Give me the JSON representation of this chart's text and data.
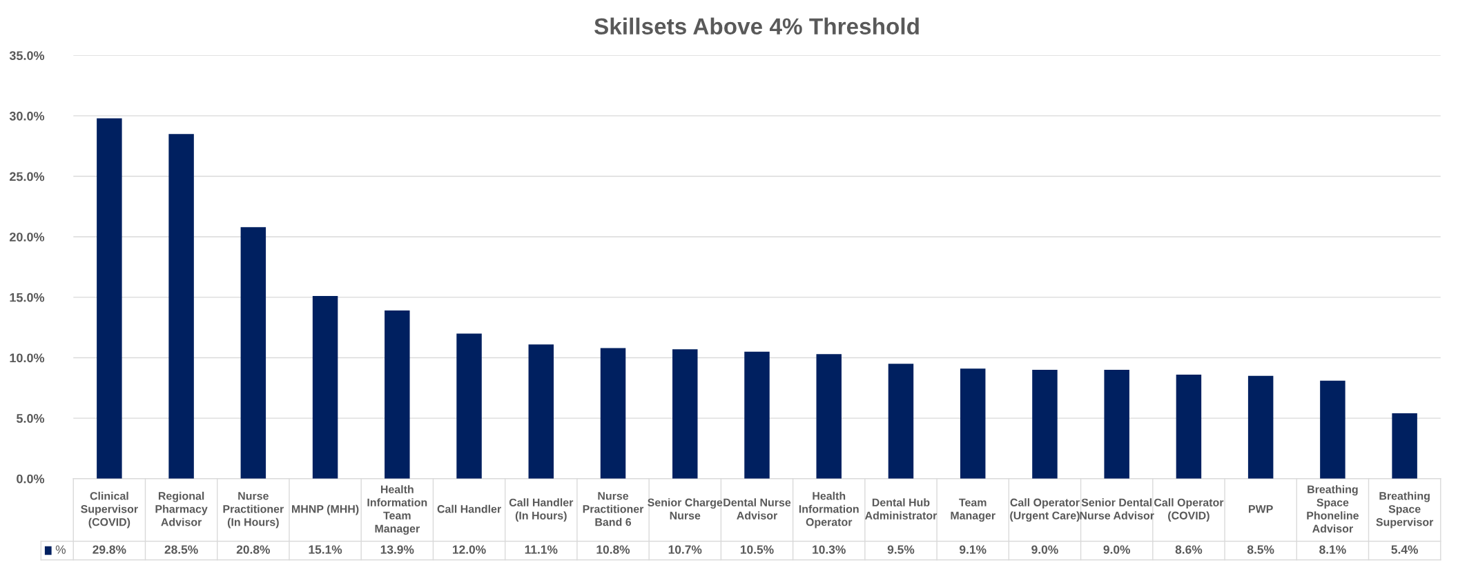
{
  "chart_data": {
    "type": "bar",
    "title": "Skillsets Above 4% Threshold",
    "categories": [
      "Clinical\nSupervisor\n(COVID)",
      "Regional\nPharmacy\nAdvisor",
      "Nurse\nPractitioner\n(In Hours)",
      "MHNP (MHH)",
      "Health\nInformation\nTeam\nManager",
      "Call Handler",
      "Call Handler\n(In Hours)",
      "Nurse\nPractitioner\nBand 6",
      "Senior Charge\nNurse",
      "Dental Nurse\nAdvisor",
      "Health\nInformation\nOperator",
      "Dental Hub\nAdministrator",
      "Team\nManager",
      "Call Operator\n(Urgent Care)",
      "Senior Dental\nNurse Advisor",
      "Call Operator\n(COVID)",
      "PWP",
      "Breathing\nSpace\nPhoneline\nAdvisor",
      "Breathing\nSpace\nSupervisor"
    ],
    "series": [
      {
        "name": "%",
        "color": "#002060",
        "values": [
          29.8,
          28.5,
          20.8,
          15.1,
          13.9,
          12.0,
          11.1,
          10.8,
          10.7,
          10.5,
          10.3,
          9.5,
          9.1,
          9.0,
          9.0,
          8.6,
          8.5,
          8.1,
          5.4
        ],
        "value_labels": [
          "29.8%",
          "28.5%",
          "20.8%",
          "15.1%",
          "13.9%",
          "12.0%",
          "11.1%",
          "10.8%",
          "10.7%",
          "10.5%",
          "10.3%",
          "9.5%",
          "9.1%",
          "9.0%",
          "9.0%",
          "8.6%",
          "8.5%",
          "8.1%",
          "5.4%"
        ]
      }
    ],
    "ylim": [
      0,
      35
    ],
    "yticks": [
      {
        "value": 0,
        "label": "0.0%"
      },
      {
        "value": 5,
        "label": "5.0%"
      },
      {
        "value": 10,
        "label": "10.0%"
      },
      {
        "value": 15,
        "label": "15.0%"
      },
      {
        "value": 20,
        "label": "20.0%"
      },
      {
        "value": 25,
        "label": "25.0%"
      },
      {
        "value": 30,
        "label": "30.0%"
      },
      {
        "value": 35,
        "label": "35.0%"
      }
    ],
    "grid": "y"
  }
}
